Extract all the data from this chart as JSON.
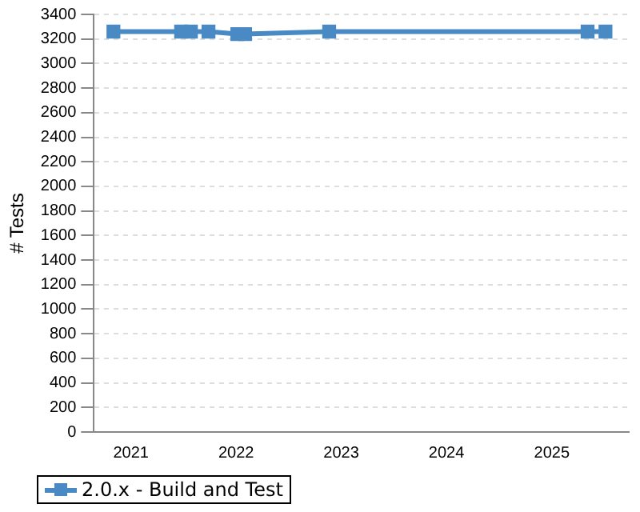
{
  "chart_data": {
    "type": "line",
    "ylabel": "# Tests",
    "x": [
      "2020-11-01",
      "2021-06-24",
      "2021-07-28",
      "2021-09-27",
      "2022-01-05",
      "2022-02-01",
      "2022-11-20",
      "2025-05-05",
      "2025-07-06"
    ],
    "series": [
      {
        "name": "2.0.x - Build and Test",
        "color": "#4a8ac4",
        "values": [
          3260,
          3260,
          3260,
          3260,
          3240,
          3240,
          3260,
          3260,
          3260
        ]
      }
    ],
    "xlim": [
      "2020-08-25",
      "2025-09-25"
    ],
    "xticks": [
      {
        "value": "2021",
        "label": "2021"
      },
      {
        "value": "2022",
        "label": "2022"
      },
      {
        "value": "2023",
        "label": "2023"
      },
      {
        "value": "2024",
        "label": "2024"
      },
      {
        "value": "2025",
        "label": "2025"
      }
    ],
    "ylim": [
      0,
      3400
    ],
    "yticks": [
      0,
      200,
      400,
      600,
      800,
      1000,
      1200,
      1400,
      1600,
      1800,
      2000,
      2200,
      2400,
      2600,
      2800,
      3000,
      3200,
      3400
    ],
    "grid": "y",
    "legend": "bottom",
    "marker": "square",
    "line_style": "solid"
  }
}
